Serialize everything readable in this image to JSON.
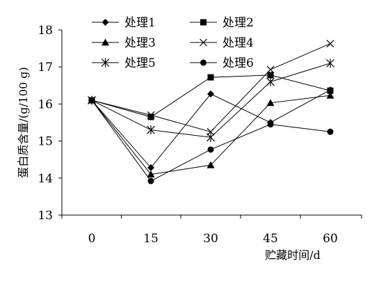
{
  "chart_data": {
    "type": "line",
    "title": "",
    "xlabel": "贮藏时间/d",
    "ylabel": "蛋白质含量/(g/100 g)",
    "x": [
      0,
      15,
      30,
      45,
      60
    ],
    "x_tick_labels": [
      "0",
      "15",
      "30",
      "45",
      "60"
    ],
    "ylim": [
      13,
      18
    ],
    "y_ticks": [
      13,
      14,
      15,
      16,
      17,
      18
    ],
    "grid": false,
    "legend_position": "top-left, inside, 2 columns",
    "series": [
      {
        "name": "处理1",
        "marker": "diamond",
        "values": [
          16.1,
          14.28,
          16.27,
          15.5,
          16.38
        ]
      },
      {
        "name": "处理2",
        "marker": "square",
        "values": [
          16.1,
          15.65,
          16.72,
          16.78,
          16.36
        ]
      },
      {
        "name": "处理3",
        "marker": "triangle",
        "values": [
          16.1,
          14.1,
          14.35,
          16.03,
          16.23
        ]
      },
      {
        "name": "处理4",
        "marker": "x",
        "values": [
          16.1,
          15.7,
          15.25,
          16.93,
          17.63
        ]
      },
      {
        "name": "处理5",
        "marker": "star",
        "values": [
          16.1,
          15.3,
          15.1,
          16.6,
          17.1
        ]
      },
      {
        "name": "处理6",
        "marker": "circle",
        "values": [
          16.1,
          13.92,
          14.77,
          15.45,
          15.25
        ]
      }
    ]
  }
}
